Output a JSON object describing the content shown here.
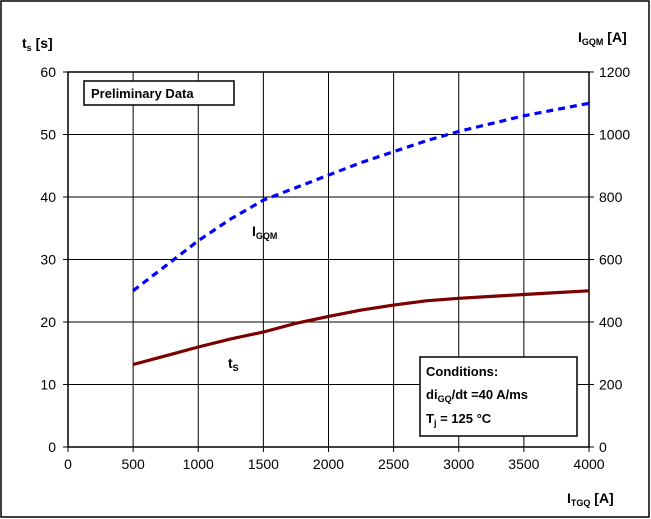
{
  "chart_data": {
    "type": "line",
    "x": [
      500,
      750,
      1000,
      1250,
      1500,
      1750,
      2000,
      2250,
      2500,
      2750,
      3000,
      3250,
      3500,
      3750,
      4000
    ],
    "xlabel": {
      "main": "I",
      "sub": "TGQ",
      "unit": " [A]"
    },
    "ylabel_left": {
      "main": "t",
      "sub": "s",
      "unit": " [s]"
    },
    "ylabel_right": {
      "main": "I",
      "sub": "GQM",
      "unit": " [A]"
    },
    "xlim": [
      0,
      4000
    ],
    "ylim_left": [
      0,
      60
    ],
    "ylim_right": [
      0,
      1200
    ],
    "xticks": [
      "0",
      "500",
      "1000",
      "1500",
      "2000",
      "2500",
      "3000",
      "3500",
      "4000"
    ],
    "yticks_left": [
      "0",
      "10",
      "20",
      "30",
      "40",
      "50",
      "60"
    ],
    "yticks_right": [
      "0",
      "200",
      "400",
      "600",
      "800",
      "1000",
      "1200"
    ],
    "grid": true,
    "series": [
      {
        "name": "ts",
        "axis": "left",
        "color": "#7b0000",
        "style": "solid",
        "values": [
          13.2,
          14.6,
          16.0,
          17.3,
          18.4,
          19.8,
          20.9,
          21.9,
          22.7,
          23.4,
          23.8,
          24.1,
          24.4,
          24.7,
          25.0
        ]
      },
      {
        "name": "IGQM",
        "axis": "right",
        "color": "#0000ff",
        "style": "dashed",
        "values": [
          500,
          580,
          660,
          730,
          790,
          830,
          870,
          910,
          945,
          980,
          1010,
          1035,
          1060,
          1080,
          1100
        ]
      }
    ],
    "series_labels": [
      {
        "main": "I",
        "sub": "GQM"
      },
      {
        "main": "t",
        "sub": "S"
      }
    ],
    "annotations": {
      "preliminary": "Preliminary Data",
      "conditions_title": "Conditions:",
      "conditions_line1": {
        "main": "di",
        "sub": "GQ",
        "rest": "/dt =40 A/ms"
      },
      "conditions_line2": {
        "main": "T",
        "sub": "j",
        "rest": " = 125 °C"
      }
    }
  }
}
